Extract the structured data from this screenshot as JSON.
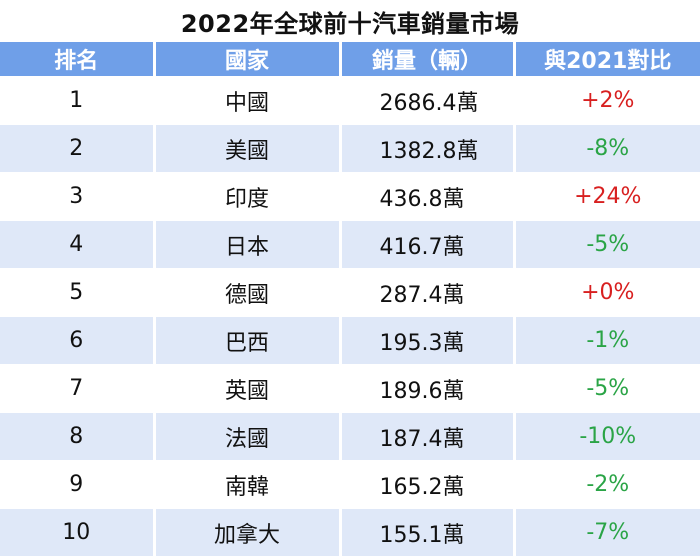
{
  "title": "2022年全球前十汽車銷量市場",
  "headers": [
    "排名",
    "國家",
    "銷量（輛）",
    "與2021對比"
  ],
  "rows": [
    {
      "rank": "1",
      "country": "中國",
      "sales": "2686.4萬",
      "change": "+2%",
      "trend": "up"
    },
    {
      "rank": "2",
      "country": "美國",
      "sales": "1382.8萬",
      "change": "-8%",
      "trend": "down"
    },
    {
      "rank": "3",
      "country": "印度",
      "sales": "436.8萬",
      "change": "+24%",
      "trend": "up"
    },
    {
      "rank": "4",
      "country": "日本",
      "sales": "416.7萬",
      "change": "-5%",
      "trend": "down"
    },
    {
      "rank": "5",
      "country": "德國",
      "sales": "287.4萬",
      "change": "+0%",
      "trend": "up"
    },
    {
      "rank": "6",
      "country": "巴西",
      "sales": "195.3萬",
      "change": "-1%",
      "trend": "down"
    },
    {
      "rank": "7",
      "country": "英國",
      "sales": "189.6萬",
      "change": "-5%",
      "trend": "down"
    },
    {
      "rank": "8",
      "country": "法國",
      "sales": "187.4萬",
      "change": "-10%",
      "trend": "down"
    },
    {
      "rank": "9",
      "country": "南韓",
      "sales": "165.2萬",
      "change": "-2%",
      "trend": "down"
    },
    {
      "rank": "10",
      "country": "加拿大",
      "sales": "155.1萬",
      "change": "-7%",
      "trend": "down"
    }
  ],
  "colors": {
    "header_bg": "#6f9fe8",
    "stripe": "#dfe8f8",
    "up": "#d82020",
    "down": "#2aa446"
  }
}
